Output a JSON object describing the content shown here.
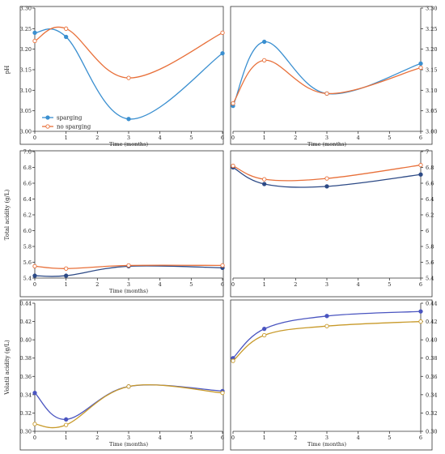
{
  "chart_data": [
    {
      "id": "ph-left",
      "type": "line",
      "ylabel": "pH",
      "xlabel": "Time (months)",
      "xlim": [
        0,
        6
      ],
      "ylim": [
        3.0,
        3.3
      ],
      "xticks": [
        "0",
        "1",
        "2",
        "3",
        "4",
        "5",
        "6"
      ],
      "yticks": [
        "3.00",
        "3.05",
        "3.10",
        "3.15",
        "3.20",
        "3.25",
        "3.30"
      ],
      "y_axis_side": "left",
      "legend": {
        "position": "bottom-left",
        "entries": [
          "sparging",
          "no sparging"
        ]
      },
      "series": [
        {
          "name": "sparging",
          "color": "#3a8fd0",
          "marker": "filled",
          "x": [
            0,
            1,
            3,
            6
          ],
          "y": [
            3.24,
            3.23,
            3.03,
            3.19
          ]
        },
        {
          "name": "no sparging",
          "color": "#e8703a",
          "marker": "open",
          "x": [
            0,
            1,
            3,
            6
          ],
          "y": [
            3.22,
            3.25,
            3.13,
            3.24
          ]
        }
      ]
    },
    {
      "id": "ph-right",
      "type": "line",
      "ylabel": "",
      "xlabel": "Time (months)",
      "xlim": [
        0,
        6
      ],
      "ylim": [
        3.0,
        3.3
      ],
      "xticks": [
        "0",
        "1",
        "2",
        "3",
        "4",
        "5",
        "6"
      ],
      "yticks": [
        "3.00",
        "3.05",
        "3.10",
        "3.15",
        "3.20",
        "3.25",
        "3.30"
      ],
      "y_axis_side": "right",
      "series": [
        {
          "color": "#3a8fd0",
          "marker": "filled",
          "x": [
            0,
            1,
            3,
            6
          ],
          "y": [
            3.062,
            3.218,
            3.092,
            3.165
          ]
        },
        {
          "color": "#e8703a",
          "marker": "open",
          "x": [
            0,
            1,
            3,
            6
          ],
          "y": [
            3.068,
            3.173,
            3.092,
            3.155
          ]
        }
      ]
    },
    {
      "id": "ta-left",
      "type": "line",
      "ylabel": "Total acidity (g/L)",
      "xlabel": "Time (months)",
      "xlim": [
        0,
        6
      ],
      "ylim": [
        5.4,
        7.0
      ],
      "xticks": [
        "0",
        "1",
        "2",
        "3",
        "4",
        "5",
        "6"
      ],
      "yticks": [
        "5.4",
        "5.6",
        "5.8",
        "6.0",
        "6.2",
        "6.4",
        "6.6",
        "6.8",
        "7.0"
      ],
      "y_axis_side": "left",
      "series": [
        {
          "color": "#2d4a86",
          "marker": "filled",
          "x": [
            0,
            1,
            3,
            6
          ],
          "y": [
            5.43,
            5.43,
            5.55,
            5.53
          ]
        },
        {
          "color": "#e8703a",
          "marker": "open",
          "x": [
            0,
            1,
            3,
            6
          ],
          "y": [
            5.55,
            5.52,
            5.56,
            5.56
          ]
        }
      ]
    },
    {
      "id": "ta-right",
      "type": "line",
      "ylabel": "",
      "xlabel": "",
      "xlim": [
        0,
        6
      ],
      "ylim": [
        5.4,
        7.0
      ],
      "xticks": [
        "0",
        "1",
        "2",
        "3",
        "4",
        "5",
        "6"
      ],
      "yticks": [
        "5.4",
        "5.6",
        "5.8",
        "6",
        "6.2",
        "6.4",
        "6.6",
        "6.8",
        "7"
      ],
      "y_axis_side": "right",
      "series": [
        {
          "color": "#2d4a86",
          "marker": "filled",
          "x": [
            0,
            1,
            3,
            6
          ],
          "y": [
            6.8,
            6.59,
            6.56,
            6.71
          ]
        },
        {
          "color": "#e8703a",
          "marker": "open",
          "x": [
            0,
            1,
            3,
            6
          ],
          "y": [
            6.82,
            6.65,
            6.66,
            6.83
          ]
        }
      ]
    },
    {
      "id": "va-left",
      "type": "line",
      "ylabel": "Volatil acidity (g/L)",
      "xlabel": "Time (months)",
      "xlim": [
        0,
        6
      ],
      "ylim": [
        0.3,
        0.44
      ],
      "xticks": [
        "0",
        "1",
        "2",
        "3",
        "4",
        "5",
        "6"
      ],
      "yticks": [
        "0.30",
        "0.32",
        "0.34",
        "0.36",
        "0.38",
        "0.40",
        "0.42",
        "0.44"
      ],
      "y_axis_side": "left",
      "series": [
        {
          "color": "#4a55c0",
          "marker": "filled",
          "x": [
            0,
            1,
            3,
            6
          ],
          "y": [
            0.342,
            0.313,
            0.349,
            0.344
          ]
        },
        {
          "color": "#c89a2a",
          "marker": "open",
          "x": [
            0,
            1,
            3,
            6
          ],
          "y": [
            0.308,
            0.307,
            0.349,
            0.342
          ]
        }
      ]
    },
    {
      "id": "va-right",
      "type": "line",
      "ylabel": "",
      "xlabel": "Time (months)",
      "xlim": [
        0,
        6
      ],
      "ylim": [
        0.3,
        0.44
      ],
      "xticks": [
        "0",
        "1",
        "2",
        "3",
        "4",
        "5",
        "6"
      ],
      "yticks": [
        "0.30",
        "0.32",
        "0.34",
        "0.36",
        "0.38",
        "0.40",
        "0.42",
        "0.44"
      ],
      "y_axis_side": "right",
      "series": [
        {
          "color": "#4a55c0",
          "marker": "filled",
          "x": [
            0,
            1,
            3,
            6
          ],
          "y": [
            0.38,
            0.412,
            0.426,
            0.431
          ]
        },
        {
          "color": "#c89a2a",
          "marker": "open",
          "x": [
            0,
            1,
            3,
            6
          ],
          "y": [
            0.377,
            0.405,
            0.415,
            0.42
          ]
        }
      ]
    }
  ]
}
